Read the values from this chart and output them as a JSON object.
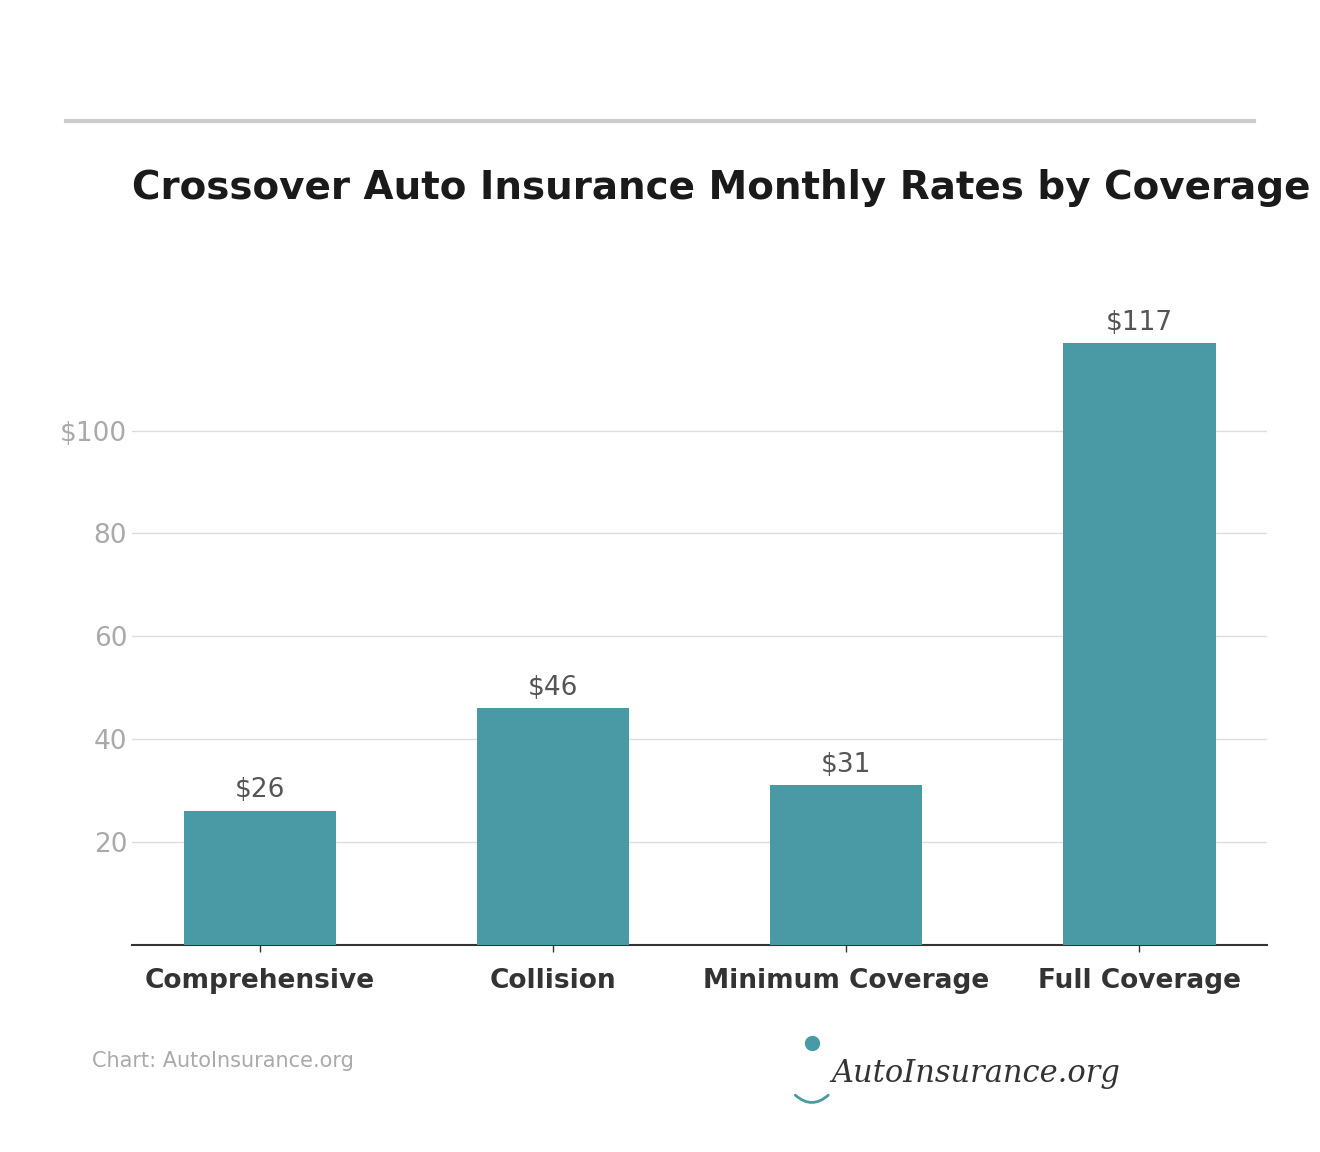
{
  "title": "Crossover Auto Insurance Monthly Rates by Coverage Level",
  "categories": [
    "Comprehensive",
    "Collision",
    "Minimum Coverage",
    "Full Coverage"
  ],
  "values": [
    26,
    46,
    31,
    117
  ],
  "bar_color": "#4a9aa5",
  "bar_labels": [
    "$26",
    "$46",
    "$31",
    "$117"
  ],
  "yticks": [
    20,
    40,
    60,
    80,
    100
  ],
  "ytick_labels": [
    "20",
    "40",
    "60",
    "80",
    "$100"
  ],
  "ylim": [
    0,
    130
  ],
  "background_color": "#ffffff",
  "title_fontsize": 28,
  "title_color": "#1a1a1a",
  "tick_label_fontsize": 19,
  "bar_label_fontsize": 19,
  "bar_label_color": "#555555",
  "category_fontsize": 19,
  "grid_color": "#dddddd",
  "top_line_color": "#cccccc",
  "bottom_line_color": "#333333",
  "watermark_text": "Chart: AutoInsurance.org",
  "watermark_color": "#aaaaaa",
  "watermark_fontsize": 15,
  "logo_text": "AutoInsurance.org",
  "logo_fontsize": 22,
  "logo_color": "#333333"
}
